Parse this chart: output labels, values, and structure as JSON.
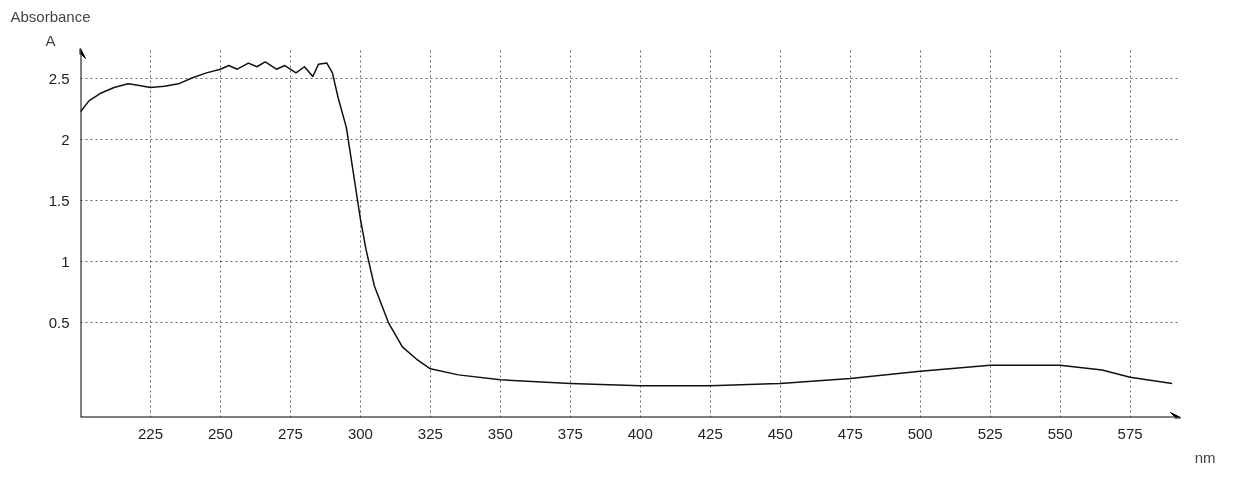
{
  "chart_data": {
    "type": "line",
    "ylabel": "Absorbance",
    "xlabel": "nm",
    "annotations": [
      "A"
    ],
    "x": [
      200,
      203,
      207,
      212,
      217,
      220,
      225,
      230,
      235,
      240,
      245,
      250,
      253,
      256,
      260,
      263,
      266,
      270,
      273,
      277,
      280,
      283,
      285,
      288,
      290,
      292,
      295,
      297,
      300,
      302,
      305,
      310,
      315,
      320,
      325,
      335,
      350,
      375,
      400,
      425,
      450,
      475,
      500,
      525,
      550,
      565,
      575,
      590
    ],
    "series": [
      {
        "color": "#111111",
        "values": [
          2.23,
          2.32,
          2.38,
          2.43,
          2.46,
          2.45,
          2.43,
          2.44,
          2.46,
          2.51,
          2.55,
          2.58,
          2.61,
          2.58,
          2.63,
          2.6,
          2.64,
          2.58,
          2.61,
          2.55,
          2.6,
          2.52,
          2.62,
          2.63,
          2.55,
          2.35,
          2.1,
          1.8,
          1.35,
          1.1,
          0.8,
          0.5,
          0.3,
          0.2,
          0.12,
          0.07,
          0.03,
          0.0,
          -0.02,
          -0.02,
          0.0,
          0.04,
          0.1,
          0.15,
          0.15,
          0.11,
          0.05,
          0.0
        ]
      }
    ],
    "xlim": [
      200,
      593
    ],
    "ylim": [
      -0.28,
      2.75
    ],
    "xticks": [
      225,
      250,
      275,
      300,
      325,
      350,
      375,
      400,
      425,
      450,
      475,
      500,
      525,
      550,
      575
    ],
    "yticks": [
      0.5,
      1,
      1.5,
      2,
      2.5
    ],
    "grid": true,
    "marker": "none",
    "line_style": "solid"
  }
}
